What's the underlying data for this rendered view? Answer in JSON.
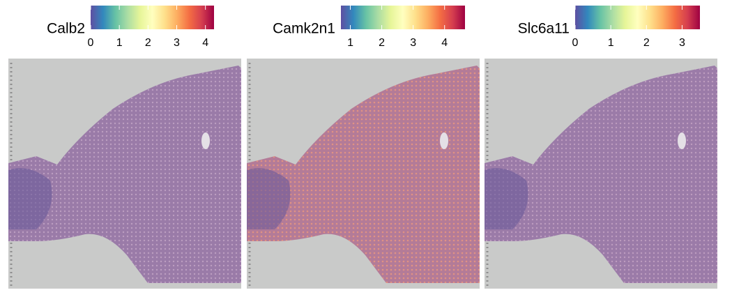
{
  "chart_data": [
    {
      "type": "spatial",
      "title": "Calb2",
      "clim": [
        0,
        4.3
      ],
      "ticks": [
        0,
        1,
        2,
        3,
        4
      ]
    },
    {
      "type": "spatial",
      "title": "Camk2n1",
      "clim": [
        0.7,
        4.65
      ],
      "ticks": [
        1,
        2,
        3,
        4
      ]
    },
    {
      "type": "spatial",
      "title": "Slc6a11",
      "clim": [
        0,
        3.5
      ],
      "ticks": [
        0,
        1,
        2,
        3
      ]
    }
  ],
  "colormap": [
    "#5e4fa2",
    "#3288bd",
    "#66c2a5",
    "#abdda4",
    "#e6f598",
    "#ffffbf",
    "#fee08b",
    "#fdae61",
    "#f46d43",
    "#d53e4f",
    "#9e0142"
  ]
}
